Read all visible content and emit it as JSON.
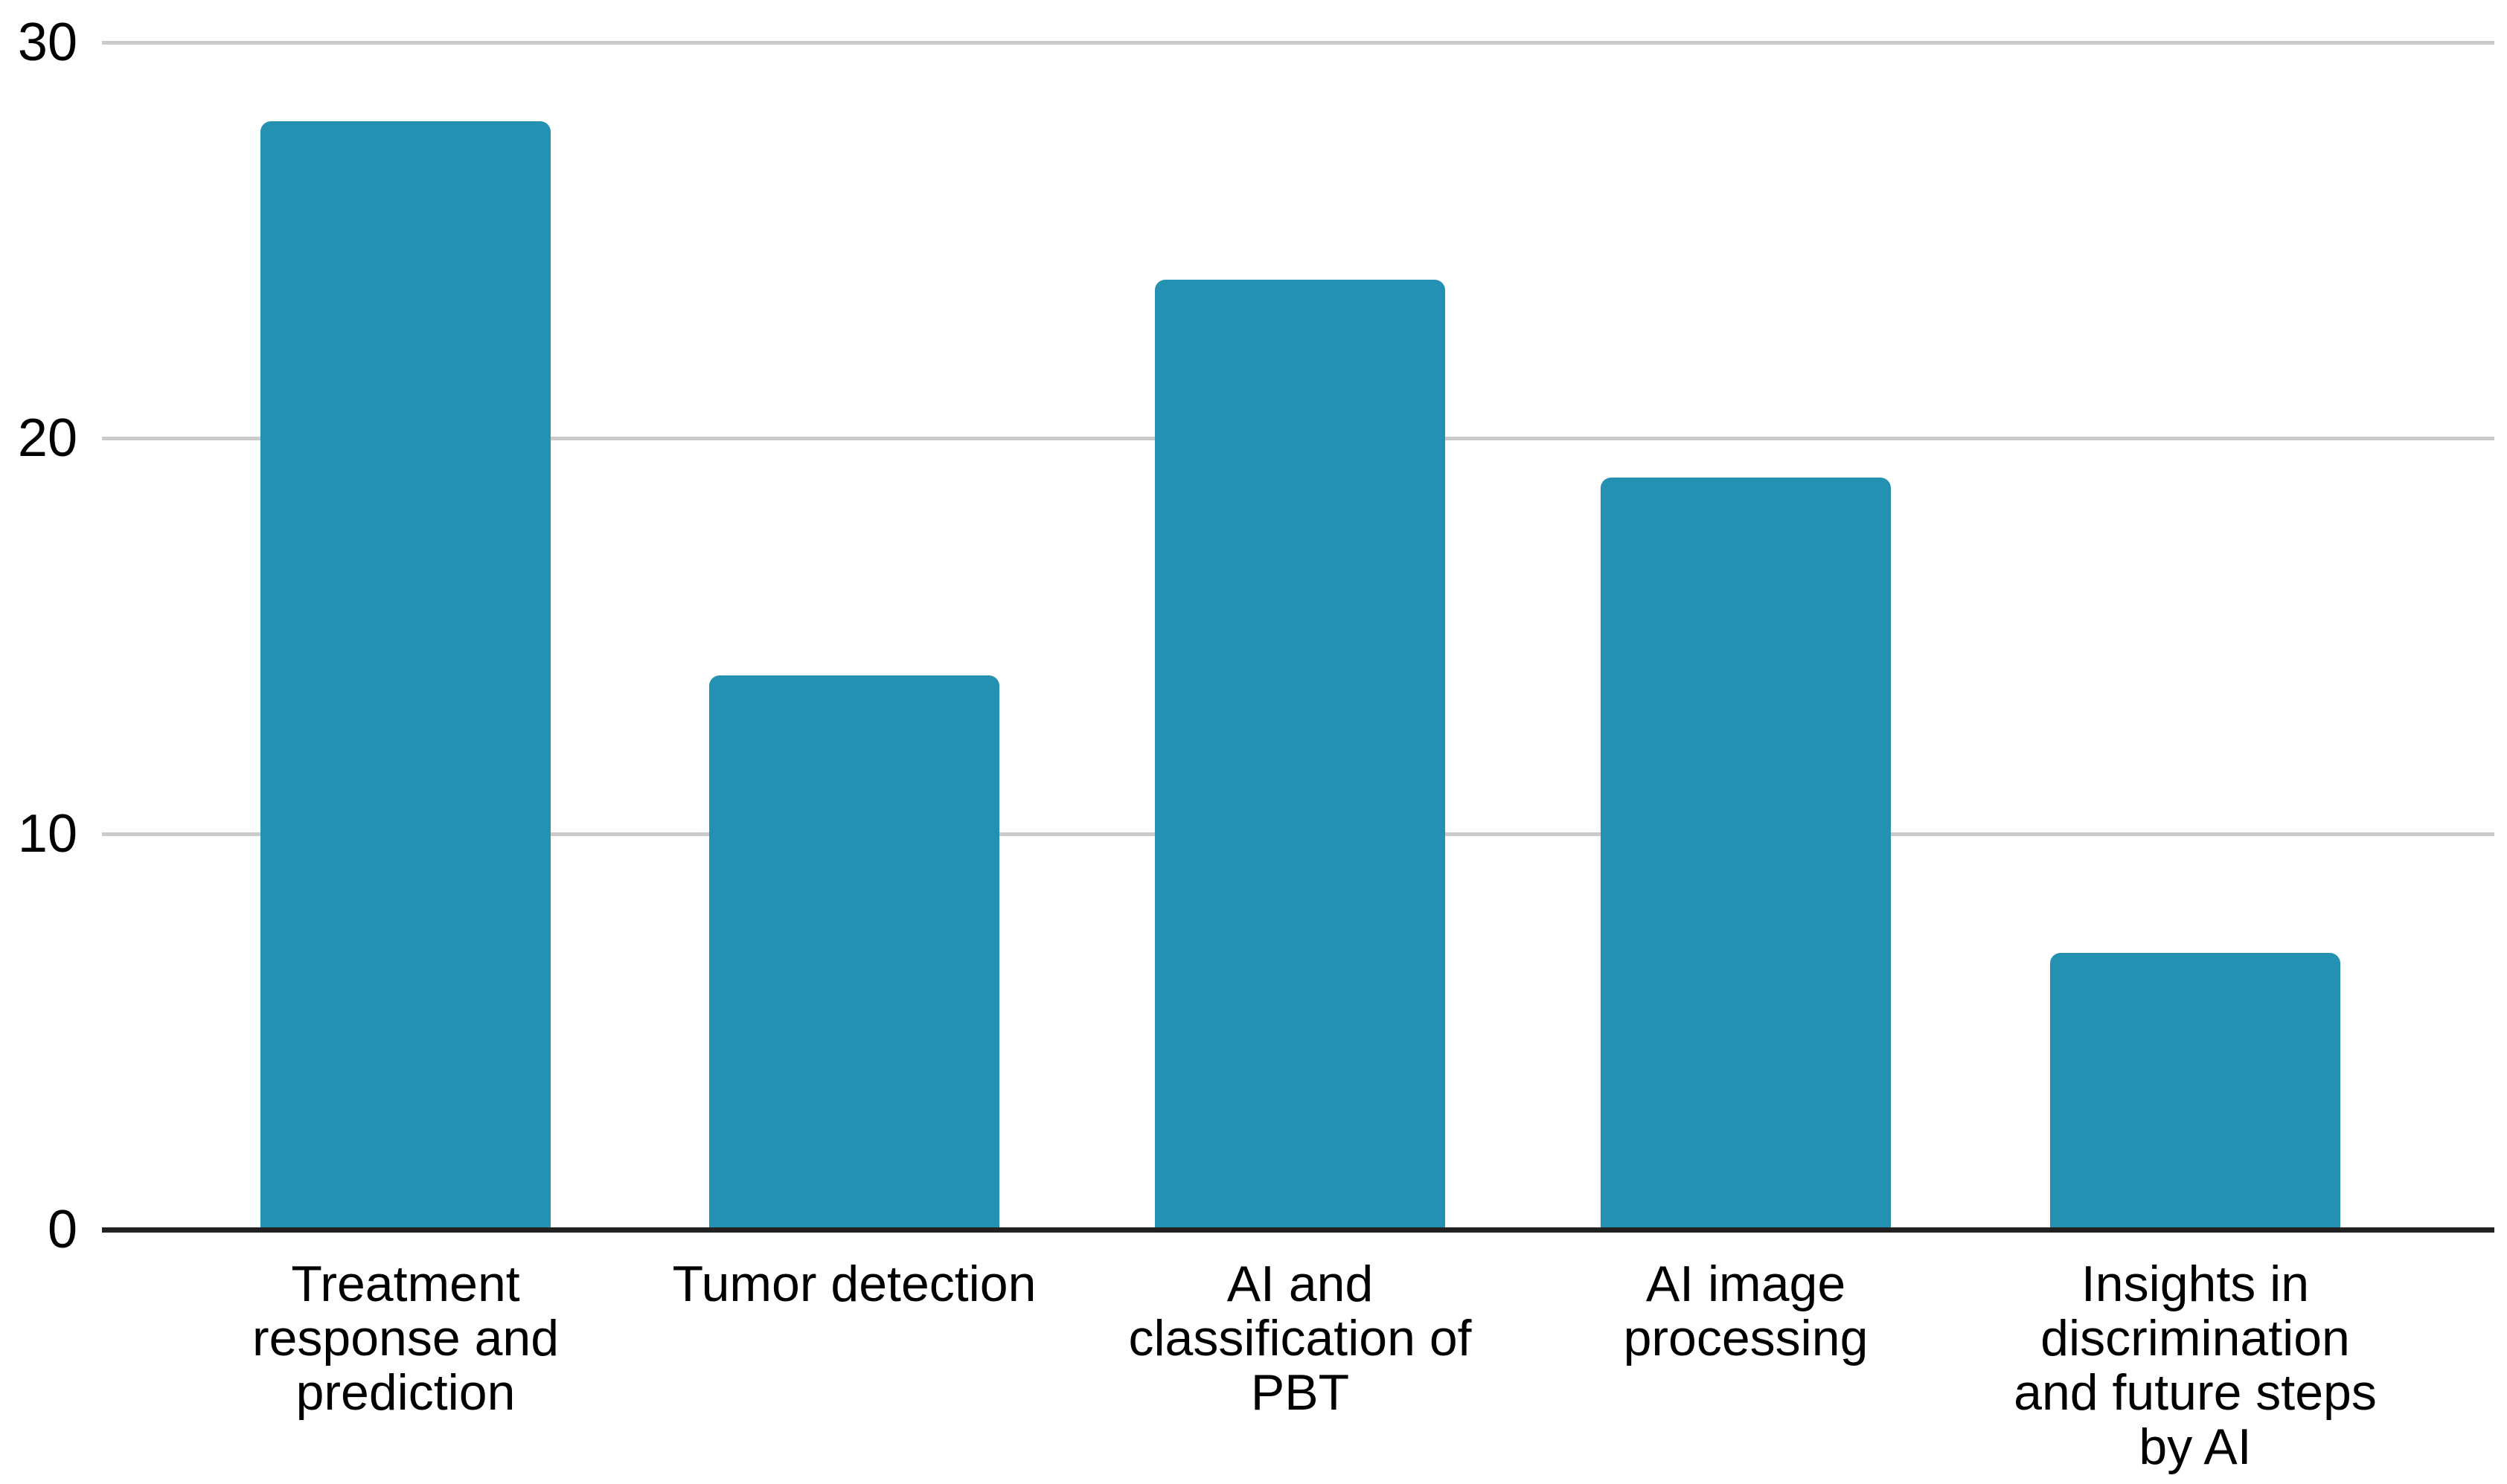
{
  "chart_data": {
    "type": "bar",
    "title": "",
    "xlabel": "",
    "ylabel": "",
    "categories": [
      "Treatment response and prediction",
      "Tumor detection",
      "AI and classification of PBT",
      "AI image processing",
      "Insights in discrimination and future steps by AI"
    ],
    "category_lines": [
      [
        "Treatment",
        "response and",
        "prediction"
      ],
      [
        "Tumor detection"
      ],
      [
        "AI and",
        "classification of",
        "PBT"
      ],
      [
        "AI image",
        "processing"
      ],
      [
        "Insights in",
        "discrimination",
        "and future steps",
        "by AI"
      ]
    ],
    "values": [
      28,
      14,
      24,
      19,
      7
    ],
    "ylim": [
      0,
      30
    ],
    "yticks": [
      0,
      10,
      20,
      30
    ],
    "grid": true,
    "legend": false,
    "colors": {
      "bar": "#2491B2",
      "gridline": "#CBCBCB",
      "axis": "#212121",
      "text": "#000000",
      "background": "#FFFFFF"
    }
  }
}
